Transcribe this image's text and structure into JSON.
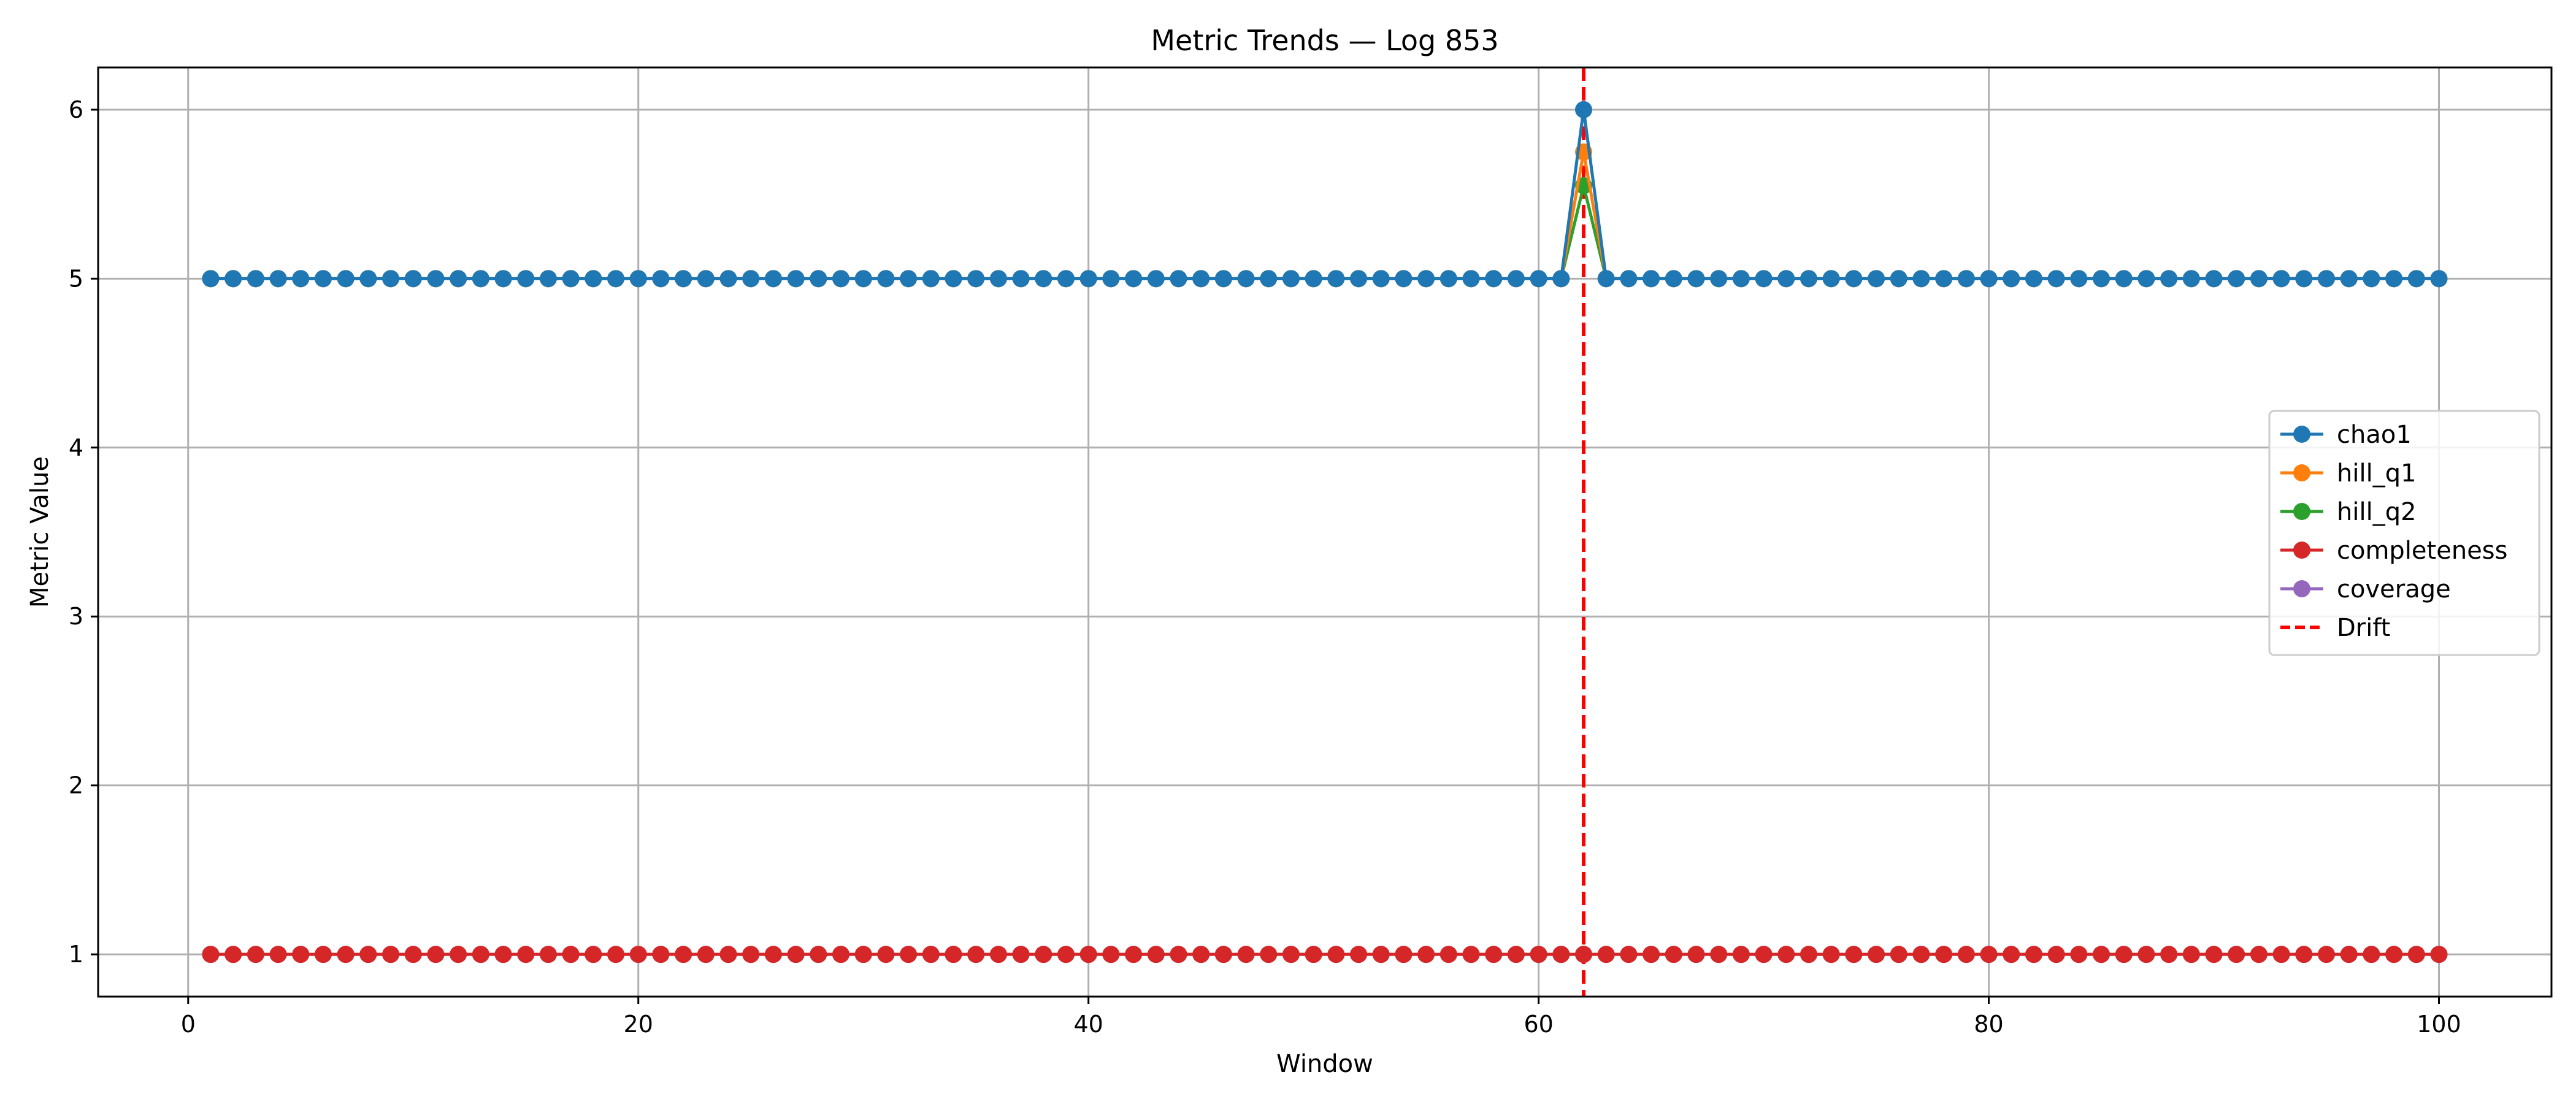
{
  "chart_data": {
    "type": "line",
    "title": "Metric Trends — Log 853",
    "xlabel": "Window",
    "ylabel": "Metric Value",
    "xlim": [
      -4,
      105
    ],
    "ylim": [
      0.75,
      6.25
    ],
    "xticks": [
      0,
      20,
      40,
      60,
      80,
      100
    ],
    "yticks": [
      1,
      2,
      3,
      4,
      5,
      6
    ],
    "grid": true,
    "legend_position": "center-right",
    "x": [
      1,
      100
    ],
    "series": [
      {
        "name": "chao1",
        "color": "#1f77b4",
        "baseline": 5,
        "overrides": {
          "62": 6.0
        }
      },
      {
        "name": "hill_q1",
        "color": "#ff7f0e",
        "baseline": 5,
        "overrides": {
          "62": 5.75
        }
      },
      {
        "name": "hill_q2",
        "color": "#2ca02c",
        "baseline": 5,
        "overrides": {
          "62": 5.55
        }
      },
      {
        "name": "completeness",
        "color": "#d62728",
        "baseline": 1,
        "overrides": {}
      },
      {
        "name": "coverage",
        "color": "#9467bd",
        "baseline": 1,
        "overrides": {}
      }
    ],
    "drift": {
      "name": "Drift",
      "x": 62,
      "color": "#ff0000"
    }
  }
}
